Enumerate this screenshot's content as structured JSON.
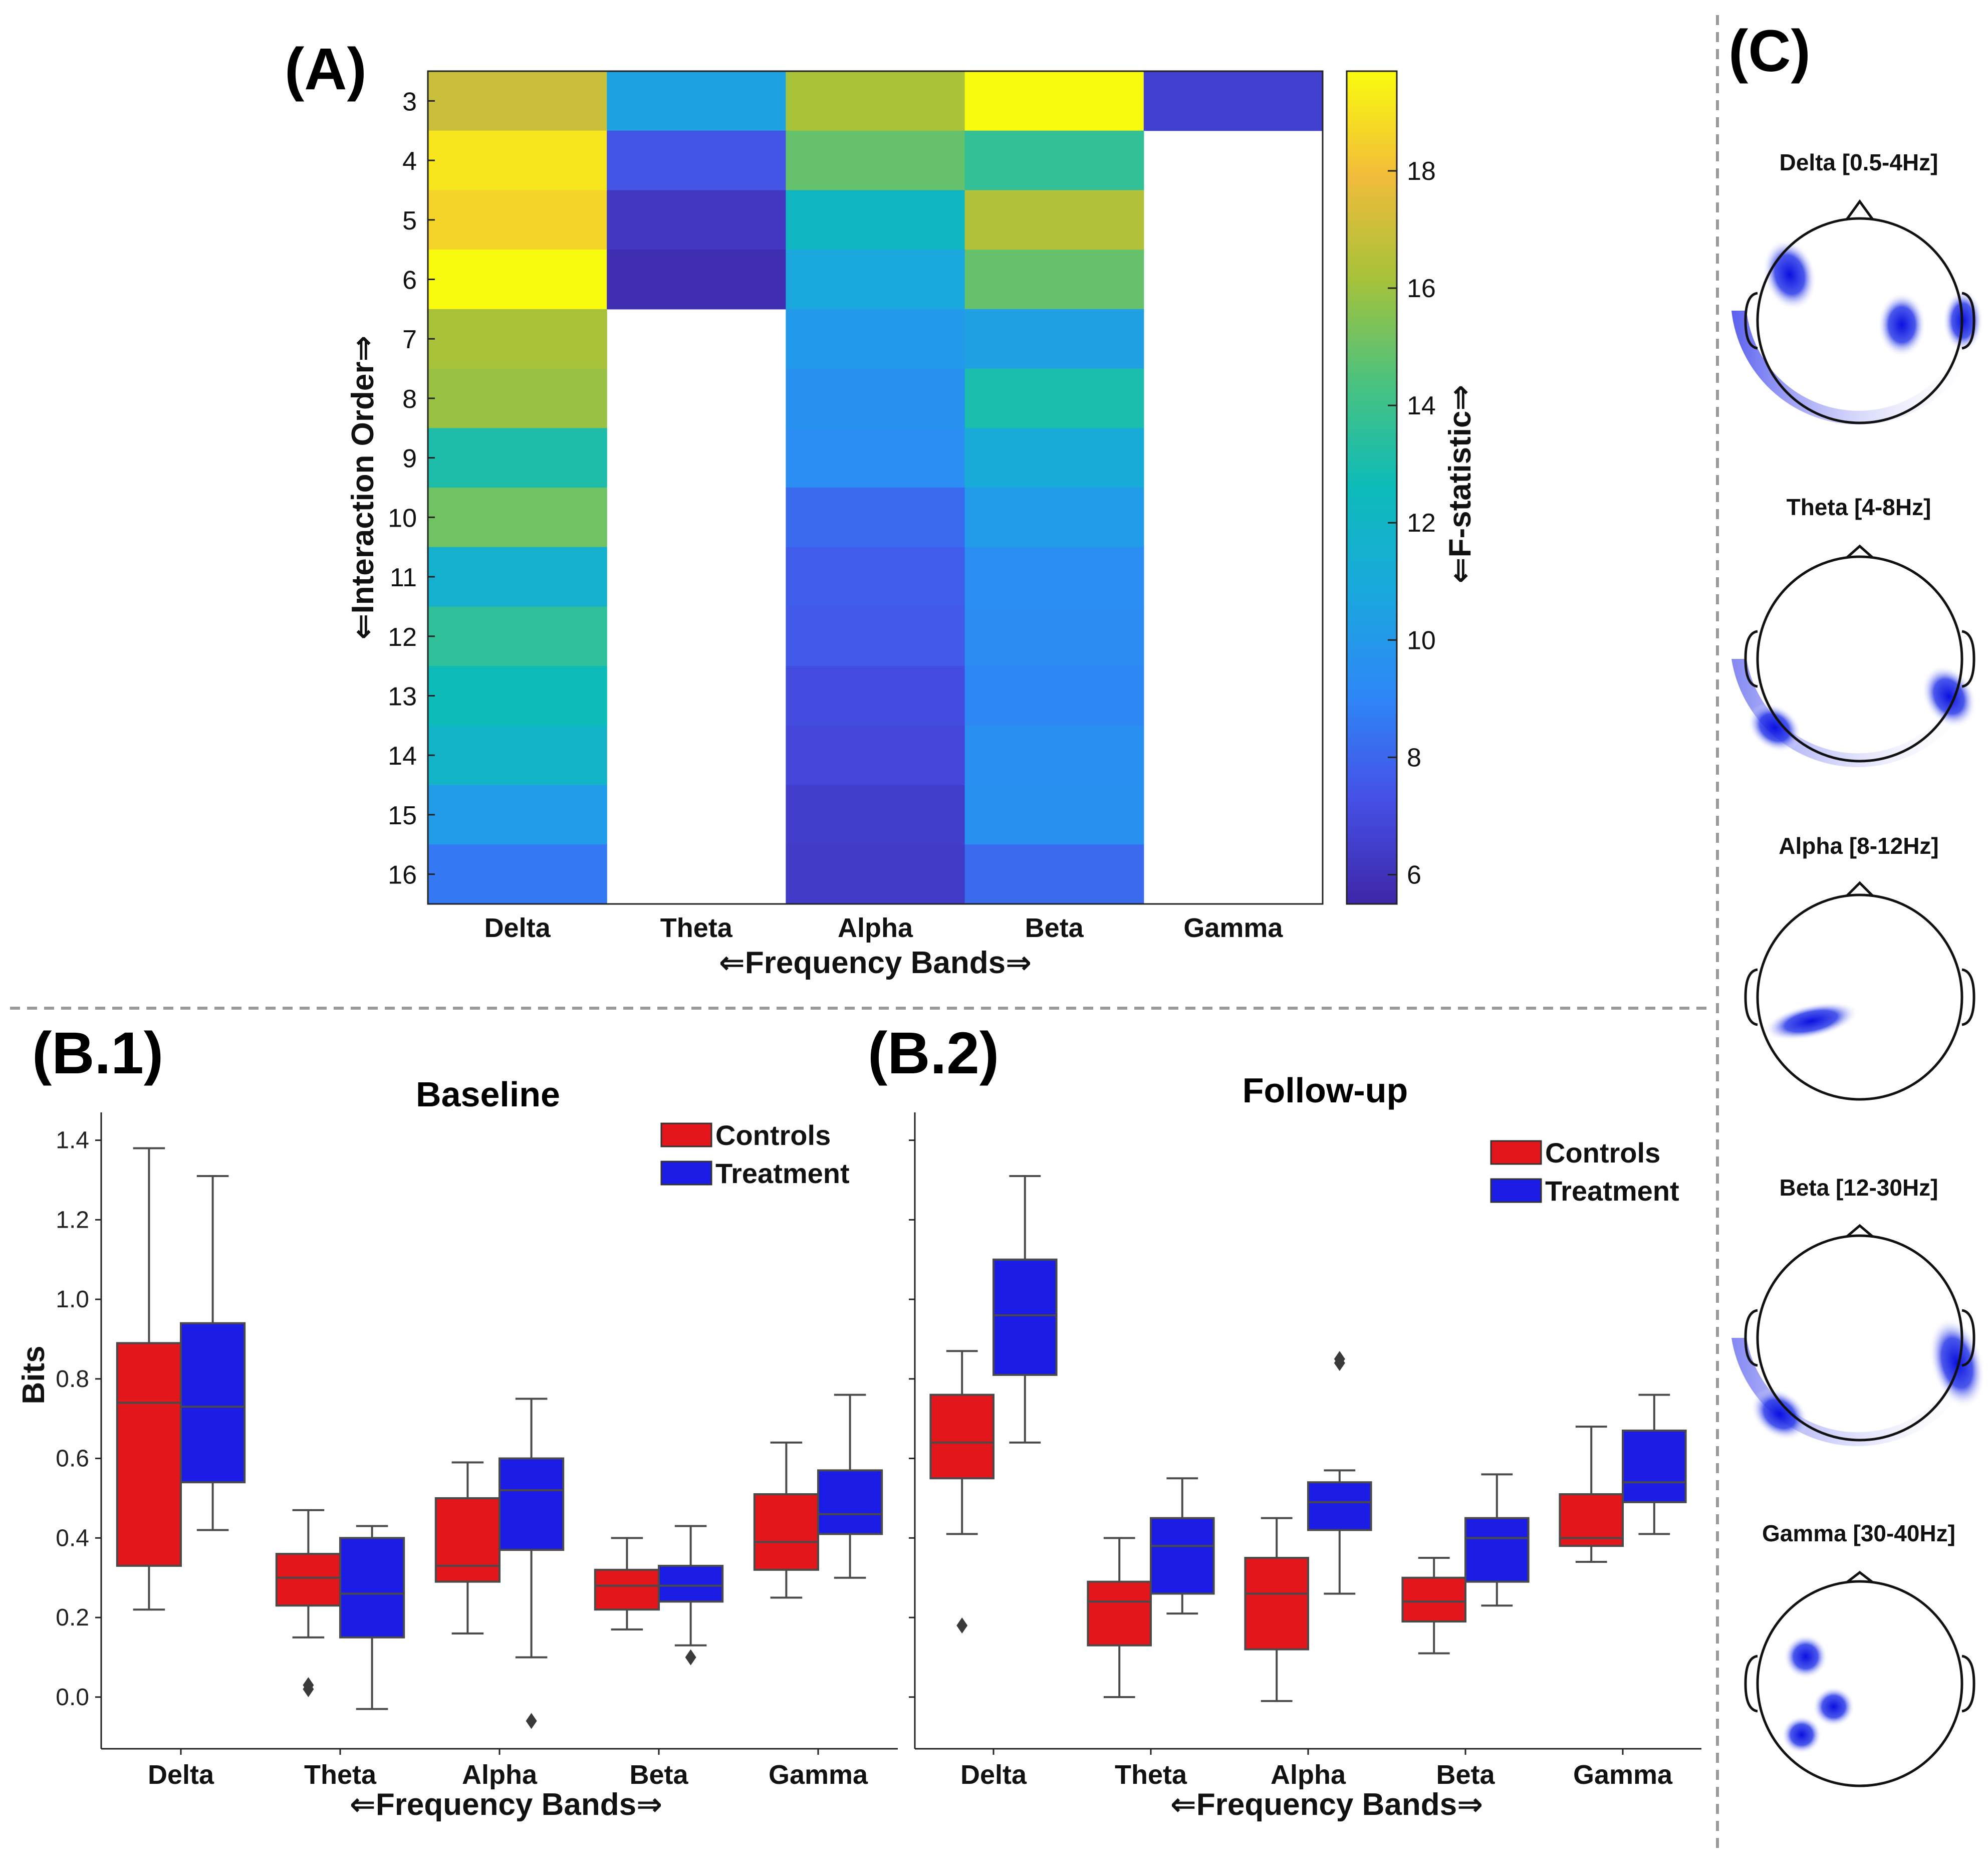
{
  "panels": {
    "a": "(A)",
    "b1": "(B.1)",
    "b2": "(B.2)",
    "c": "(C)"
  },
  "chart_data": [
    {
      "id": "heatmap",
      "type": "heatmap",
      "title": "",
      "xlabel": "⇐Frequency Bands⇒",
      "ylabel": "⇐Interaction Order⇒",
      "colorbar_label": "⇐F-statistic⇒",
      "colorbar_ticks": [
        6,
        8,
        10,
        12,
        14,
        16,
        18
      ],
      "color_range": [
        5.5,
        19.7
      ],
      "colormap": "parula",
      "columns": [
        "Delta",
        "Theta",
        "Alpha",
        "Beta",
        "Gamma"
      ],
      "rows": [
        3,
        4,
        5,
        6,
        7,
        8,
        9,
        10,
        11,
        12,
        13,
        14,
        15,
        16
      ],
      "values": [
        [
          17.0,
          10.6,
          16.2,
          19.7,
          6.6
        ],
        [
          19.1,
          7.4,
          14.9,
          13.7,
          null
        ],
        [
          18.6,
          6.2,
          12.1,
          16.4,
          null
        ],
        [
          19.7,
          5.8,
          10.8,
          14.9,
          null
        ],
        [
          16.2,
          null,
          10.0,
          10.4,
          null
        ],
        [
          15.9,
          null,
          9.6,
          13.0,
          null
        ],
        [
          13.1,
          null,
          9.4,
          11.1,
          null
        ],
        [
          15.1,
          null,
          8.1,
          10.1,
          null
        ],
        [
          11.6,
          null,
          7.7,
          9.4,
          null
        ],
        [
          13.6,
          null,
          7.6,
          9.3,
          null
        ],
        [
          12.6,
          null,
          7.1,
          9.1,
          null
        ],
        [
          11.9,
          null,
          6.9,
          9.5,
          null
        ],
        [
          10.1,
          null,
          6.5,
          9.6,
          null
        ],
        [
          8.6,
          null,
          6.4,
          8.1,
          null
        ]
      ]
    },
    {
      "id": "baseline",
      "type": "box",
      "title": "Baseline",
      "xlabel": "⇐Frequency Bands⇒",
      "ylabel": "Bits",
      "ylim": [
        -0.13,
        1.47
      ],
      "yticks": [
        "0.0",
        "0.2",
        "0.4",
        "0.6",
        "0.8",
        "1.0",
        "1.2",
        "1.4"
      ],
      "categories": [
        "Delta",
        "Theta",
        "Alpha",
        "Beta",
        "Gamma"
      ],
      "legend": [
        "Controls",
        "Treatment"
      ],
      "legend_position": "top-right",
      "series": [
        {
          "name": "Controls",
          "color": "#e3161b",
          "boxes": [
            {
              "lo": 0.22,
              "q1": 0.33,
              "median": 0.74,
              "q3": 0.89,
              "hi": 1.38,
              "outliers": []
            },
            {
              "lo": 0.15,
              "q1": 0.23,
              "median": 0.3,
              "q3": 0.36,
              "hi": 0.47,
              "outliers": [
                0.02,
                0.03
              ]
            },
            {
              "lo": 0.16,
              "q1": 0.29,
              "median": 0.33,
              "q3": 0.5,
              "hi": 0.59,
              "outliers": []
            },
            {
              "lo": 0.17,
              "q1": 0.22,
              "median": 0.28,
              "q3": 0.32,
              "hi": 0.4,
              "outliers": []
            },
            {
              "lo": 0.25,
              "q1": 0.32,
              "median": 0.39,
              "q3": 0.51,
              "hi": 0.64,
              "outliers": []
            }
          ]
        },
        {
          "name": "Treatment",
          "color": "#1b1de6",
          "boxes": [
            {
              "lo": 0.42,
              "q1": 0.54,
              "median": 0.73,
              "q3": 0.94,
              "hi": 1.31,
              "outliers": []
            },
            {
              "lo": -0.03,
              "q1": 0.15,
              "median": 0.26,
              "q3": 0.4,
              "hi": 0.43,
              "outliers": []
            },
            {
              "lo": 0.1,
              "q1": 0.37,
              "median": 0.52,
              "q3": 0.6,
              "hi": 0.75,
              "outliers": [
                -0.06
              ]
            },
            {
              "lo": 0.13,
              "q1": 0.24,
              "median": 0.28,
              "q3": 0.33,
              "hi": 0.43,
              "outliers": [
                0.1
              ]
            },
            {
              "lo": 0.3,
              "q1": 0.41,
              "median": 0.46,
              "q3": 0.57,
              "hi": 0.76,
              "outliers": []
            }
          ]
        }
      ]
    },
    {
      "id": "followup",
      "type": "box",
      "title": "Follow-up",
      "xlabel": "⇐Frequency Bands⇒",
      "ylabel": "",
      "ylim": [
        -0.13,
        1.47
      ],
      "yticks": [],
      "categories": [
        "Delta",
        "Theta",
        "Alpha",
        "Beta",
        "Gamma"
      ],
      "legend": [
        "Controls",
        "Treatment"
      ],
      "legend_position": "top-right",
      "series": [
        {
          "name": "Controls",
          "color": "#e3161b",
          "boxes": [
            {
              "lo": 0.41,
              "q1": 0.55,
              "median": 0.64,
              "q3": 0.76,
              "hi": 0.87,
              "outliers": [
                0.18
              ]
            },
            {
              "lo": 0.0,
              "q1": 0.13,
              "median": 0.24,
              "q3": 0.29,
              "hi": 0.4,
              "outliers": []
            },
            {
              "lo": -0.01,
              "q1": 0.12,
              "median": 0.26,
              "q3": 0.35,
              "hi": 0.45,
              "outliers": []
            },
            {
              "lo": 0.11,
              "q1": 0.19,
              "median": 0.24,
              "q3": 0.3,
              "hi": 0.35,
              "outliers": []
            },
            {
              "lo": 0.34,
              "q1": 0.38,
              "median": 0.4,
              "q3": 0.51,
              "hi": 0.68,
              "outliers": []
            }
          ]
        },
        {
          "name": "Treatment",
          "color": "#1b1de6",
          "boxes": [
            {
              "lo": 0.64,
              "q1": 0.81,
              "median": 0.96,
              "q3": 1.1,
              "hi": 1.31,
              "outliers": []
            },
            {
              "lo": 0.21,
              "q1": 0.26,
              "median": 0.38,
              "q3": 0.45,
              "hi": 0.55,
              "outliers": []
            },
            {
              "lo": 0.26,
              "q1": 0.42,
              "median": 0.49,
              "q3": 0.54,
              "hi": 0.57,
              "outliers": [
                0.84,
                0.85
              ]
            },
            {
              "lo": 0.23,
              "q1": 0.29,
              "median": 0.4,
              "q3": 0.45,
              "hi": 0.56,
              "outliers": []
            },
            {
              "lo": 0.41,
              "q1": 0.49,
              "median": 0.54,
              "q3": 0.67,
              "hi": 0.76,
              "outliers": []
            }
          ]
        }
      ]
    },
    {
      "id": "topomaps",
      "type": "other",
      "description": "scalp topographies",
      "maps": [
        {
          "title": "Delta [0.5-4Hz]"
        },
        {
          "title": "Theta [4-8Hz]"
        },
        {
          "title": "Alpha [8-12Hz]"
        },
        {
          "title": "Beta [12-30Hz]"
        },
        {
          "title": "Gamma [30-40Hz]"
        }
      ]
    }
  ]
}
